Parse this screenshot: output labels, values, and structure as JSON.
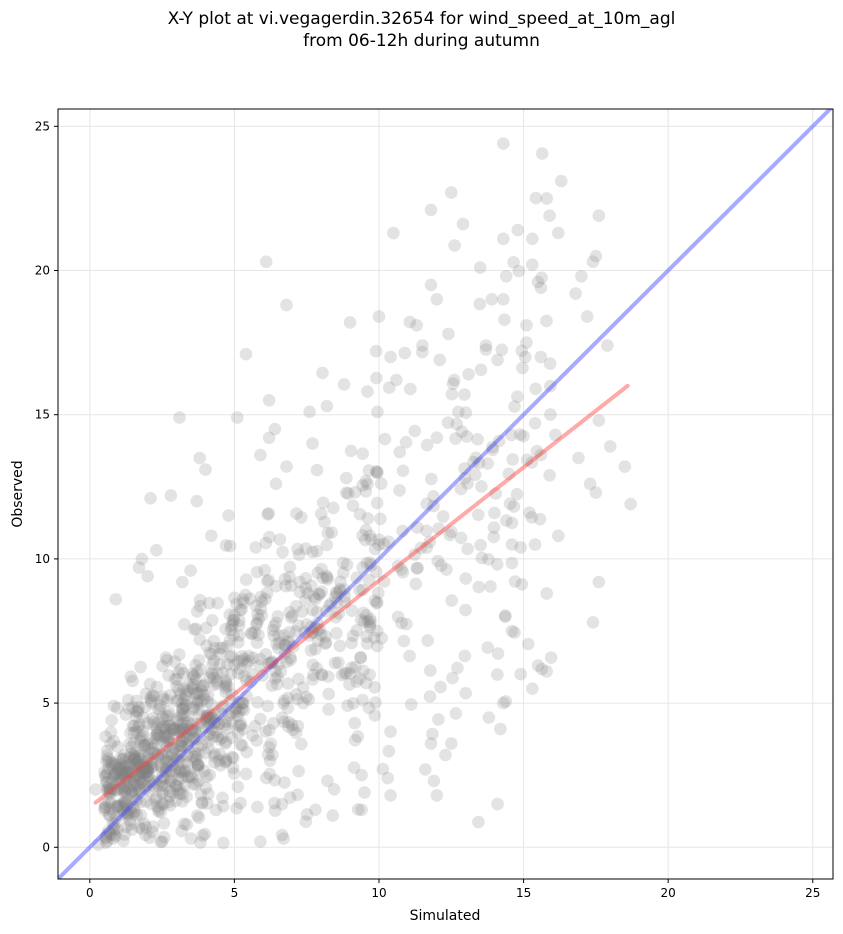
{
  "chart_data": {
    "type": "scatter",
    "title_lines": [
      "X-Y plot at vi.vegagerdin.32654 for wind_speed_at_10m_agl",
      "from 06-12h during autumn"
    ],
    "xlabel": "Simulated",
    "ylabel": "Observed",
    "xlim": [
      -1.1,
      25.7
    ],
    "ylim": [
      -1.1,
      25.6
    ],
    "xticks": [
      0,
      5,
      10,
      15,
      20,
      25
    ],
    "yticks": [
      0,
      5,
      10,
      15,
      20,
      25
    ],
    "grid": true,
    "points_color": "#808080",
    "points_alpha": 0.22,
    "identity_line": {
      "color": "#4040ff",
      "from": [
        -1.1,
        -1.1
      ],
      "to": [
        25.7,
        25.7
      ]
    },
    "regression_line": {
      "color": "#ff4040",
      "from": [
        0.2,
        1.55
      ],
      "to": [
        18.6,
        16.0
      ]
    },
    "generated_cloud": {
      "count": 1150,
      "note_values": "dense core near simulated 2-8 / observed 1-10, spread widening toward simulated 15"
    },
    "points": [
      [
        14.3,
        24.4
      ],
      [
        16.3,
        23.1
      ],
      [
        12.5,
        22.7
      ],
      [
        15.8,
        22.5
      ],
      [
        11.8,
        22.1
      ],
      [
        14.8,
        21.4
      ],
      [
        15.3,
        21.1
      ],
      [
        14.3,
        21.1
      ],
      [
        17.6,
        21.9
      ],
      [
        15.9,
        21.9
      ],
      [
        16.2,
        21.3
      ],
      [
        10.5,
        21.3
      ],
      [
        13.5,
        20.1
      ],
      [
        14.4,
        19.8
      ],
      [
        15.3,
        20.2
      ],
      [
        17.5,
        20.5
      ],
      [
        17.4,
        20.3
      ],
      [
        6.1,
        20.3
      ],
      [
        15.5,
        19.6
      ],
      [
        15.6,
        19.4
      ],
      [
        13.9,
        19.0
      ],
      [
        14.3,
        19.0
      ],
      [
        17.0,
        19.8
      ],
      [
        16.8,
        19.2
      ],
      [
        11.8,
        19.5
      ],
      [
        12.0,
        19.0
      ],
      [
        6.8,
        18.8
      ],
      [
        11.3,
        18.1
      ],
      [
        12.4,
        17.8
      ],
      [
        15.1,
        18.1
      ],
      [
        17.2,
        18.4
      ],
      [
        17.9,
        17.4
      ],
      [
        10.0,
        18.4
      ],
      [
        9.0,
        18.2
      ],
      [
        5.4,
        17.1
      ],
      [
        9.9,
        17.2
      ],
      [
        10.4,
        17.0
      ],
      [
        11.5,
        17.4
      ],
      [
        12.1,
        16.9
      ],
      [
        13.7,
        17.4
      ],
      [
        14.1,
        16.9
      ],
      [
        15.6,
        17.0
      ],
      [
        15.1,
        17.5
      ],
      [
        12.6,
        16.2
      ],
      [
        13.1,
        16.4
      ],
      [
        10.6,
        16.2
      ],
      [
        9.6,
        15.8
      ],
      [
        8.2,
        15.3
      ],
      [
        7.6,
        15.1
      ],
      [
        5.1,
        14.9
      ],
      [
        3.1,
        14.9
      ],
      [
        6.2,
        15.5
      ],
      [
        6.4,
        14.5
      ],
      [
        6.2,
        14.2
      ],
      [
        7.7,
        14.0
      ],
      [
        3.8,
        13.5
      ],
      [
        4.0,
        13.1
      ],
      [
        5.9,
        13.6
      ],
      [
        6.8,
        13.2
      ],
      [
        16.9,
        13.5
      ],
      [
        17.3,
        12.6
      ],
      [
        17.5,
        12.3
      ],
      [
        18.5,
        13.2
      ],
      [
        18.7,
        11.9
      ],
      [
        18.0,
        13.9
      ],
      [
        17.6,
        14.8
      ],
      [
        16.1,
        14.3
      ],
      [
        15.4,
        14.7
      ],
      [
        15.6,
        13.6
      ],
      [
        15.9,
        12.9
      ],
      [
        16.2,
        10.8
      ],
      [
        14.6,
        10.5
      ],
      [
        14.9,
        10.4
      ],
      [
        15.2,
        11.6
      ],
      [
        15.4,
        10.5
      ],
      [
        2.1,
        12.1
      ],
      [
        2.8,
        12.2
      ],
      [
        3.7,
        12.0
      ],
      [
        2.3,
        10.3
      ],
      [
        1.8,
        10.0
      ],
      [
        1.7,
        9.7
      ],
      [
        2.0,
        9.4
      ],
      [
        3.2,
        9.2
      ],
      [
        4.2,
        10.8
      ],
      [
        0.9,
        8.6
      ],
      [
        4.8,
        11.5
      ],
      [
        17.6,
        9.2
      ],
      [
        15.8,
        8.8
      ],
      [
        17.4,
        7.8
      ],
      [
        15.8,
        6.1
      ],
      [
        15.5,
        6.3
      ],
      [
        15.3,
        5.5
      ],
      [
        14.9,
        6.0
      ],
      [
        14.6,
        7.5
      ],
      [
        14.2,
        4.1
      ],
      [
        14.1,
        1.5
      ],
      [
        10.4,
        1.8
      ],
      [
        12.0,
        1.8
      ],
      [
        9.4,
        1.3
      ],
      [
        8.4,
        1.1
      ],
      [
        7.8,
        1.3
      ],
      [
        6.7,
        0.3
      ],
      [
        5.9,
        0.2
      ],
      [
        2.5,
        0.2
      ],
      [
        3.5,
        0.3
      ],
      [
        3.9,
        0.4
      ],
      [
        0.3,
        0.1
      ],
      [
        0.2,
        2.0
      ],
      [
        12.5,
        3.6
      ],
      [
        12.3,
        3.2
      ],
      [
        11.6,
        2.7
      ],
      [
        11.9,
        2.3
      ],
      [
        9.4,
        2.5
      ],
      [
        9.5,
        1.9
      ],
      [
        10.3,
        2.4
      ],
      [
        11.8,
        3.6
      ],
      [
        13.8,
        4.5
      ],
      [
        14.3,
        5.0
      ]
    ]
  }
}
